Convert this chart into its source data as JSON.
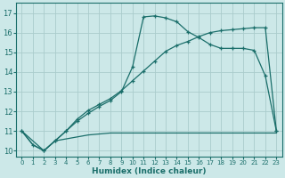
{
  "xlabel": "Humidex (Indice chaleur)",
  "bg_color": "#cce8e8",
  "grid_color": "#aacccc",
  "line_color": "#1a6e6a",
  "xlim": [
    -0.5,
    23.5
  ],
  "ylim": [
    9.7,
    17.5
  ],
  "xticks": [
    0,
    1,
    2,
    3,
    4,
    5,
    6,
    7,
    8,
    9,
    10,
    11,
    12,
    13,
    14,
    15,
    16,
    17,
    18,
    19,
    20,
    21,
    22,
    23
  ],
  "yticks": [
    10,
    11,
    12,
    13,
    14,
    15,
    16,
    17
  ],
  "line1_x": [
    0,
    1,
    2,
    3,
    4,
    5,
    6,
    7,
    8,
    9,
    10,
    11,
    12,
    13,
    14,
    15,
    16,
    17,
    18,
    19,
    20,
    21,
    22,
    23
  ],
  "line1_y": [
    11.0,
    10.3,
    10.0,
    10.5,
    10.6,
    10.7,
    10.8,
    10.85,
    10.9,
    10.9,
    10.9,
    10.9,
    10.9,
    10.9,
    10.9,
    10.9,
    10.9,
    10.9,
    10.9,
    10.9,
    10.9,
    10.9,
    10.9,
    10.9
  ],
  "line2_x": [
    0,
    1,
    2,
    3,
    4,
    5,
    6,
    7,
    8,
    9,
    10,
    11,
    12,
    13,
    14,
    15,
    16,
    17,
    18,
    19,
    20,
    21,
    22,
    23
  ],
  "line2_y": [
    11.0,
    10.3,
    10.0,
    10.5,
    11.0,
    11.5,
    11.9,
    12.25,
    12.55,
    13.0,
    14.25,
    16.8,
    16.85,
    16.75,
    16.55,
    16.05,
    15.75,
    15.4,
    15.2,
    15.2,
    15.2,
    15.1,
    13.8,
    11.0
  ],
  "line3_x": [
    0,
    2,
    3,
    4,
    5,
    6,
    7,
    8,
    9,
    10,
    11,
    12,
    13,
    14,
    15,
    16,
    17,
    18,
    19,
    20,
    21,
    22,
    23
  ],
  "line3_y": [
    11.0,
    10.0,
    10.5,
    11.0,
    11.6,
    12.05,
    12.35,
    12.65,
    13.05,
    13.55,
    14.05,
    14.55,
    15.05,
    15.35,
    15.55,
    15.8,
    16.0,
    16.1,
    16.15,
    16.2,
    16.25,
    16.25,
    11.0
  ]
}
